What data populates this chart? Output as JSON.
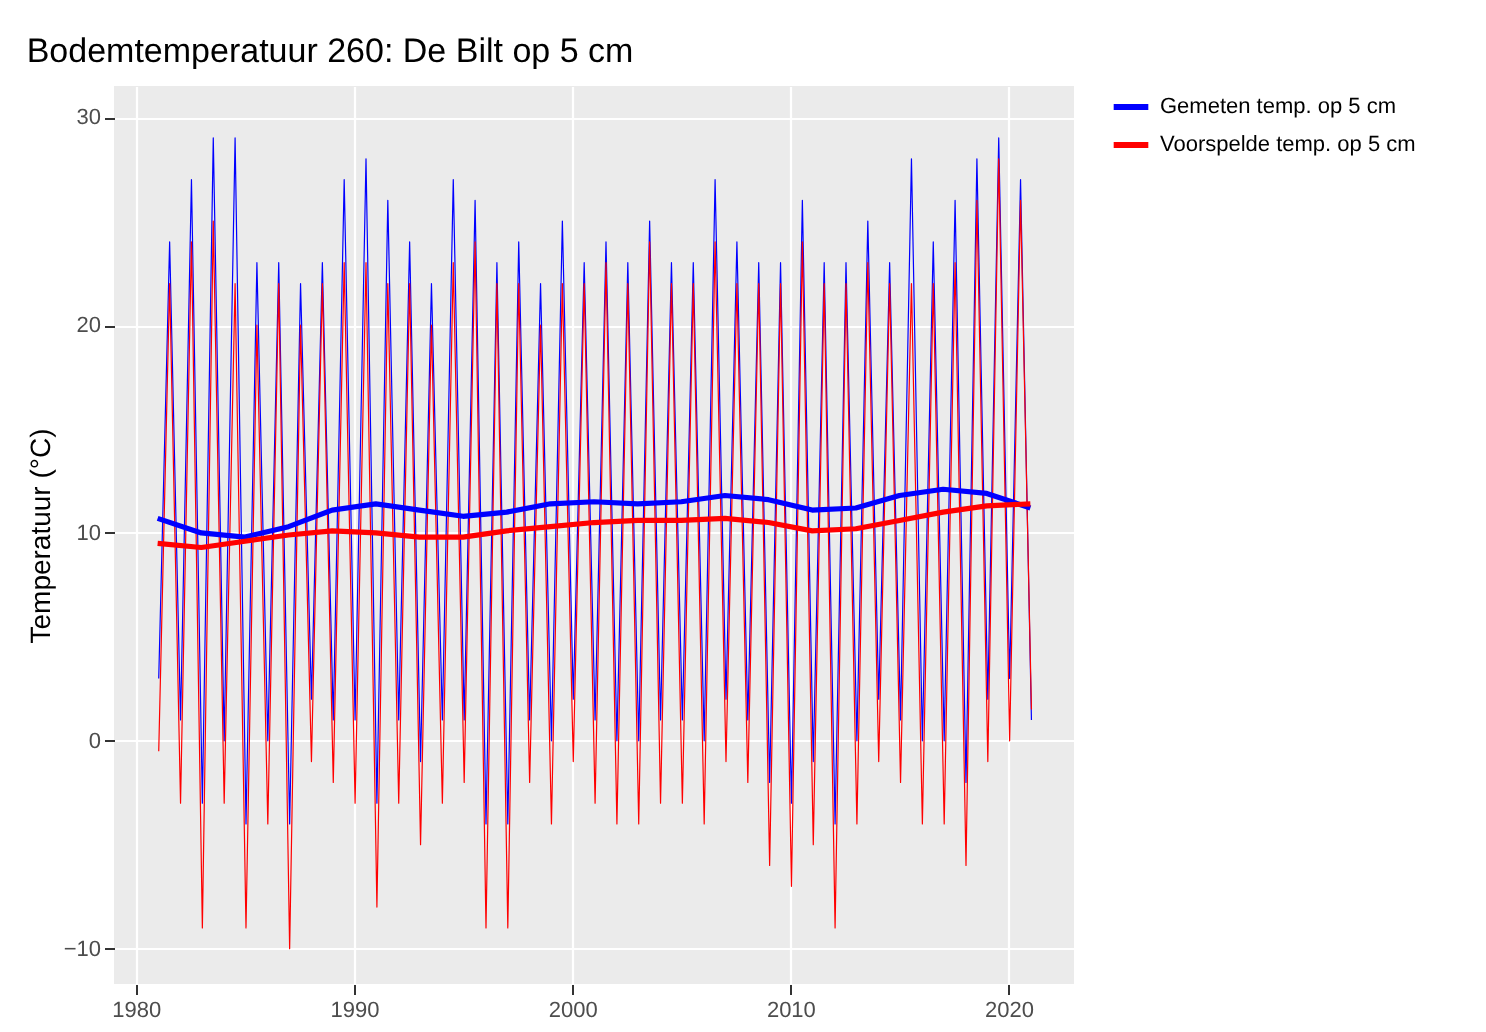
{
  "chart_data": {
    "type": "line",
    "title": "Bodemtemperatuur 260: De Bilt op 5 cm",
    "ylabel": "Temperatuur (°C)",
    "xlim": [
      1979,
      2023
    ],
    "xticks": [
      1980,
      1990,
      2000,
      2010,
      2020
    ],
    "ylim": [
      -11.7,
      31.5
    ],
    "yticks": [
      -10,
      0,
      10,
      20,
      30
    ],
    "grid": true,
    "legend": "right",
    "x": [
      1981.05,
      1981.55,
      1982.05,
      1982.55,
      1983.05,
      1983.55,
      1984.05,
      1984.55,
      1985.05,
      1985.55,
      1986.05,
      1986.55,
      1987.05,
      1987.55,
      1988.05,
      1988.55,
      1989.05,
      1989.55,
      1990.05,
      1990.55,
      1991.05,
      1991.55,
      1992.05,
      1992.55,
      1993.05,
      1993.55,
      1994.05,
      1994.55,
      1995.05,
      1995.55,
      1996.05,
      1996.55,
      1997.05,
      1997.55,
      1998.05,
      1998.55,
      1999.05,
      1999.55,
      2000.05,
      2000.55,
      2001.05,
      2001.55,
      2002.05,
      2002.55,
      2003.05,
      2003.55,
      2004.05,
      2004.55,
      2005.05,
      2005.55,
      2006.05,
      2006.55,
      2007.05,
      2007.55,
      2008.05,
      2008.55,
      2009.05,
      2009.55,
      2010.05,
      2010.55,
      2011.05,
      2011.55,
      2012.05,
      2012.55,
      2013.05,
      2013.55,
      2014.05,
      2014.55,
      2015.05,
      2015.55,
      2016.05,
      2016.55,
      2017.05,
      2017.55,
      2018.05,
      2018.55,
      2019.05,
      2019.55,
      2020.05,
      2020.55,
      2021.05
    ],
    "series": [
      {
        "name": "Gemeten temp. op 5 cm",
        "color": "#0000ff",
        "values": [
          3,
          24,
          1,
          27,
          -3,
          29,
          0,
          29,
          -4,
          23,
          0,
          23,
          -4,
          22,
          2,
          23,
          1,
          27,
          1,
          28,
          -3,
          26,
          1,
          24,
          -1,
          22,
          1,
          27,
          1,
          26,
          -4,
          23,
          -4,
          24,
          1,
          22,
          0,
          25,
          2,
          23,
          1,
          24,
          0,
          23,
          0,
          25,
          1,
          23,
          1,
          23,
          0,
          27,
          2,
          24,
          1,
          23,
          -2,
          23,
          -3,
          26,
          -1,
          23,
          -4,
          23,
          0,
          25,
          2,
          23,
          1,
          28,
          0,
          24,
          0,
          26,
          -2,
          28,
          2,
          29,
          3,
          27,
          1
        ]
      },
      {
        "name": "Voorspelde temp. op 5 cm",
        "color": "#ff0000",
        "values": [
          -0.5,
          22,
          -3,
          24,
          -9,
          25,
          -3,
          22,
          -9,
          20,
          -4,
          22,
          -10,
          20,
          -1,
          22,
          -2,
          23,
          -3,
          23,
          -8,
          22,
          -3,
          22,
          -5,
          20,
          -3,
          23,
          -2,
          24,
          -9,
          22,
          -9,
          22,
          -2,
          20,
          -4,
          22,
          -1,
          22,
          -3,
          23,
          -4,
          22,
          -4,
          24,
          -3,
          22,
          -3,
          22,
          -4,
          24,
          -1,
          22,
          -2,
          22,
          -6,
          22,
          -7,
          24,
          -5,
          22,
          -9,
          22,
          -4,
          23,
          -1,
          22,
          -2,
          22,
          -4,
          22,
          -4,
          23,
          -6,
          26,
          -1,
          28,
          0,
          26,
          1.5
        ]
      },
      {
        "type": "line",
        "color": "#0000ff",
        "x": [
          1981,
          1983,
          1985,
          1987,
          1989,
          1991,
          1993,
          1995,
          1997,
          1999,
          2001,
          2003,
          2005,
          2007,
          2009,
          2011,
          2013,
          2015,
          2017,
          2019,
          2021
        ],
        "values": [
          10.7,
          10.0,
          9.8,
          10.3,
          11.1,
          11.4,
          11.1,
          10.8,
          11.0,
          11.4,
          11.5,
          11.4,
          11.5,
          11.8,
          11.6,
          11.1,
          11.2,
          11.8,
          12.1,
          11.9,
          11.2
        ]
      },
      {
        "type": "line",
        "color": "#ff0000",
        "x": [
          1981,
          1983,
          1985,
          1987,
          1989,
          1991,
          1993,
          1995,
          1997,
          1999,
          2001,
          2003,
          2005,
          2007,
          2009,
          2011,
          2013,
          2015,
          2017,
          2019,
          2021
        ],
        "values": [
          9.5,
          9.3,
          9.6,
          9.9,
          10.1,
          10.0,
          9.8,
          9.8,
          10.1,
          10.3,
          10.5,
          10.6,
          10.6,
          10.7,
          10.5,
          10.1,
          10.2,
          10.6,
          11.0,
          11.3,
          11.4
        ]
      }
    ]
  }
}
